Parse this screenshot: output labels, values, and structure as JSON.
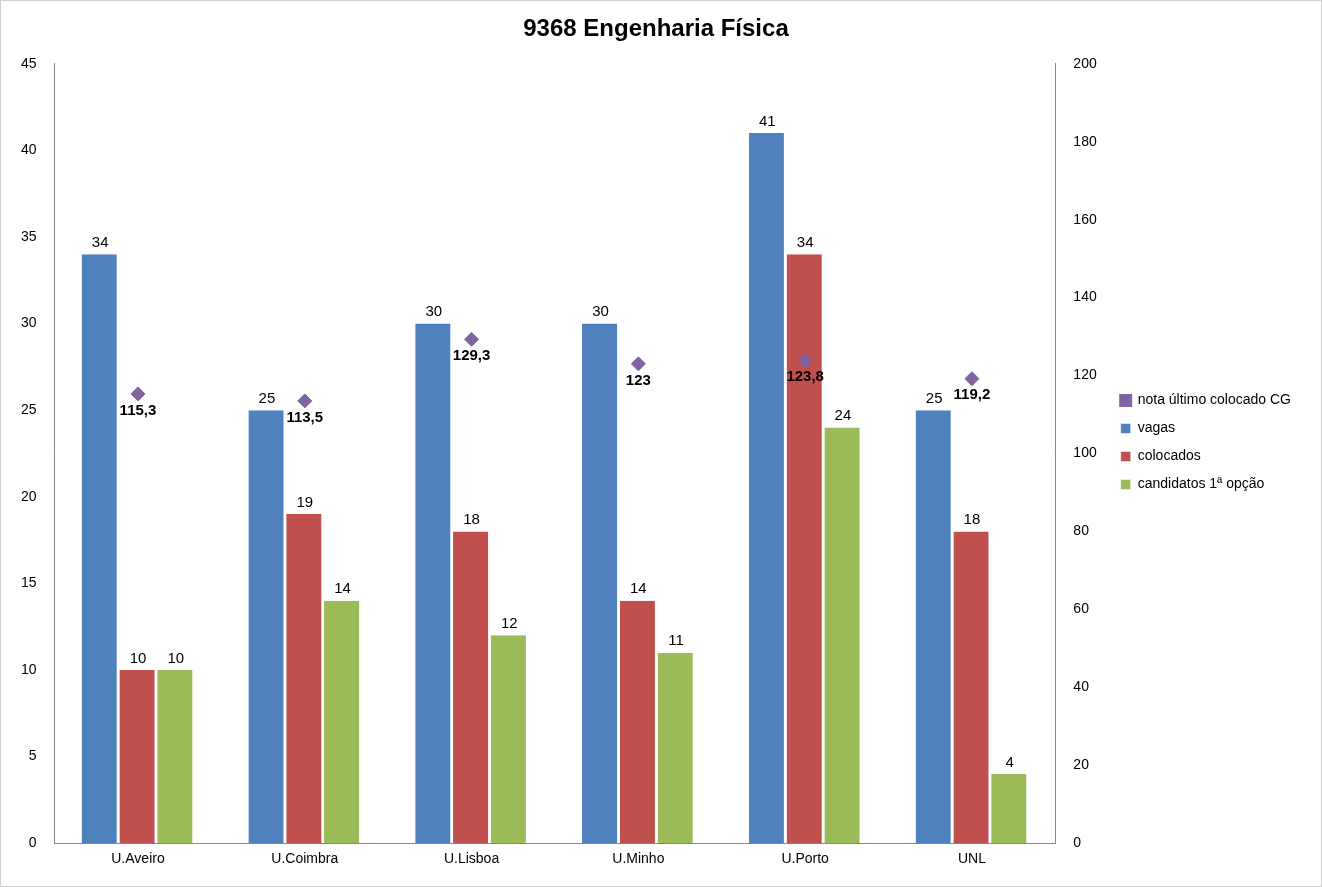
{
  "chart_data": {
    "type": "bar",
    "title": "9368 Engenharia Física",
    "categories": [
      "U.Aveiro",
      "U.Coimbra",
      "U.Lisboa",
      "U.Minho",
      "U.Porto",
      "UNL"
    ],
    "series": [
      {
        "name": "vagas",
        "color": "#4f81bd",
        "values": [
          34,
          25,
          30,
          30,
          41,
          25
        ]
      },
      {
        "name": "colocados",
        "color": "#c0504d",
        "values": [
          10,
          19,
          18,
          14,
          34,
          18
        ]
      },
      {
        "name": "candidatos 1ª opção",
        "color": "#9bbb59",
        "values": [
          10,
          14,
          12,
          11,
          24,
          4
        ]
      },
      {
        "name": "nota último colocado CG",
        "color": "#8064a2",
        "type": "scatter",
        "marker": "diamond",
        "axis": "y2",
        "values": [
          115.3,
          113.5,
          129.3,
          123,
          123.8,
          119.2
        ],
        "value_labels": [
          "115,3",
          "113,5",
          "129,3",
          "123",
          "123,8",
          "119,2"
        ]
      }
    ],
    "ylim": [
      0,
      45
    ],
    "yticks": [
      0,
      5,
      10,
      15,
      20,
      25,
      30,
      35,
      40,
      45
    ],
    "y2lim": [
      0,
      200
    ],
    "y2ticks": [
      0,
      20,
      40,
      60,
      80,
      100,
      120,
      140,
      160,
      180,
      200
    ],
    "grid": false,
    "legend": "right",
    "data_labels": true
  }
}
